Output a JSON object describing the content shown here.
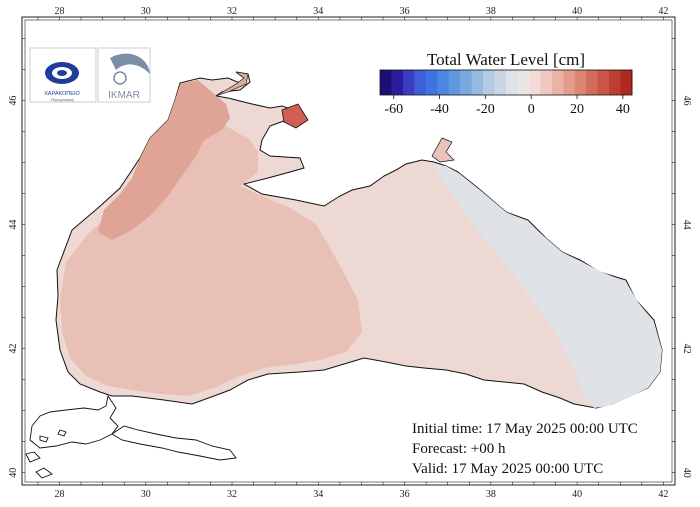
{
  "map": {
    "title": "Total Water Level [cm]",
    "longitude_ticks": [
      "28",
      "30",
      "32",
      "34",
      "36",
      "38",
      "40",
      "42"
    ],
    "latitude_ticks": [
      "40",
      "42",
      "44",
      "46"
    ],
    "extent": {
      "lon_min": 27.2,
      "lon_max": 42.2,
      "lat_min": 39.85,
      "lat_max": 47.3
    }
  },
  "colorbar": {
    "tick_labels": [
      "-60",
      "-40",
      "-20",
      "0",
      "20",
      "40"
    ],
    "tick_values": [
      -60,
      -40,
      -20,
      0,
      20,
      40
    ],
    "min": -66,
    "max": 44,
    "colors": [
      "#1b0f74",
      "#2a1d9e",
      "#3b3cc4",
      "#3f5ed8",
      "#3f74e0",
      "#4b86df",
      "#5e98de",
      "#7aa9de",
      "#97bbe0",
      "#b2cbe2",
      "#cad6e3",
      "#dde2e8",
      "#eae6e6",
      "#f2dcd8",
      "#f0c8bf",
      "#ebb3a6",
      "#e59c8c",
      "#dd8574",
      "#d26c5c",
      "#c85546",
      "#bc3e32",
      "#b0291f"
    ]
  },
  "info": {
    "initial_time": "Initial time: 17 May 2025 00:00 UTC",
    "forecast": "Forecast: +00 h",
    "valid": "Valid: 17 May 2025 00:00 UTC"
  },
  "logos": {
    "left_text": "ΧΑΡΑΚΟΠΕΙΟ",
    "left_subtext": "Υδρογραφική",
    "right_text": "IKMAR"
  },
  "water_level_regions": [
    {
      "name": "northwest-shelf",
      "level_cm": 18,
      "color": "#e2a89a"
    },
    {
      "name": "sea-of-azov",
      "level_cm": 14,
      "color": "#dcaa9c"
    },
    {
      "name": "kerch-strait",
      "level_cm": 38,
      "color": "#cf5f54"
    },
    {
      "name": "western-basin",
      "level_cm": 10,
      "color": "#ecc8bf"
    },
    {
      "name": "central-basin",
      "level_cm": 3,
      "color": "#efe2e0"
    },
    {
      "name": "eastern-basin",
      "level_cm": -3,
      "color": "#dfe3e7"
    }
  ]
}
